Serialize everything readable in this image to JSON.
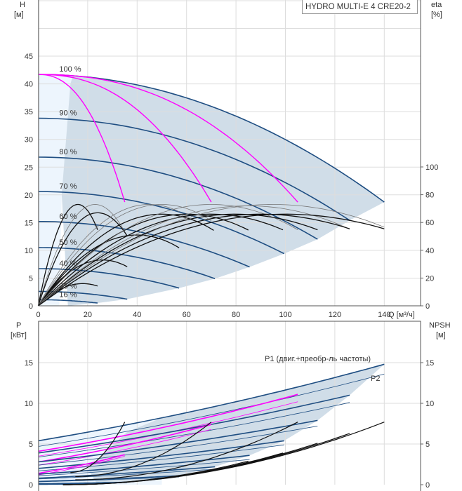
{
  "chart_data": [
    {
      "type": "line",
      "title": "HYDRO MULTI-E 4 CRE20-2",
      "xlabel": "Q [м³/ч]",
      "ylabel": [
        "H",
        "[м]"
      ],
      "y2label": [
        "eta",
        "[%]"
      ],
      "xlim": [
        0,
        140
      ],
      "ylim": [
        0,
        55
      ],
      "y2lim": [
        0,
        100
      ],
      "xticks": [
        "0",
        "20",
        "40",
        "60",
        "80",
        "100",
        "120",
        "140"
      ],
      "xticks_values": [
        0,
        20,
        40,
        60,
        80,
        100,
        120,
        140
      ],
      "yticks": [
        "0",
        "5",
        "10",
        "15",
        "20",
        "25",
        "30",
        "35",
        "40",
        "45"
      ],
      "yticks_values": [
        0,
        5,
        10,
        15,
        20,
        25,
        30,
        35,
        40,
        45
      ],
      "y2ticks": [
        "0",
        "20",
        "40",
        "60",
        "80",
        "100"
      ],
      "y2ticks_values": [
        0,
        20,
        40,
        60,
        80,
        100
      ],
      "grid": true,
      "colors": {
        "qh": "#1f4e82",
        "limit": "#ff00ff",
        "eta": "#000000",
        "band": "#d0dde8",
        "light": "#edf5fd"
      },
      "qh_curves": [
        {
          "label": "100 %",
          "h0": 41.7,
          "qend": 140,
          "hend": 18.7
        },
        {
          "label": "90 %",
          "h0": 33.8,
          "qend": 126,
          "hend": 15.4
        },
        {
          "label": "80 %",
          "h0": 26.8,
          "qend": 113,
          "hend": 12.0
        },
        {
          "label": "70 %",
          "h0": 20.6,
          "qend": 99.5,
          "hend": 9.4
        },
        {
          "label": "60 %",
          "h0": 15.2,
          "qend": 85.5,
          "hend": 7.0
        },
        {
          "label": "50 %",
          "h0": 10.5,
          "qend": 71.5,
          "hend": 4.9
        },
        {
          "label": "40 %",
          "h0": 6.7,
          "qend": 57,
          "hend": 3.2
        },
        {
          "label": "25 %",
          "h0": 2.6,
          "qend": 36,
          "hend": 1.2
        },
        {
          "label": "16 %",
          "h0": 1.1,
          "qend": 24,
          "hend": 0.5
        }
      ],
      "limit_curves": [
        {
          "h0": 41.7,
          "qend": 35,
          "hend": 18.7
        },
        {
          "h0": 41.7,
          "qend": 70,
          "hend": 18.7
        },
        {
          "h0": 41.7,
          "qend": 105,
          "hend": 18.7
        }
      ],
      "eta_curves": [
        {
          "qpeak": 16,
          "epeak": 73,
          "qend": 24,
          "thin": false
        },
        {
          "qpeak": 23,
          "epeak": 73,
          "qend": 36,
          "thin": true
        },
        {
          "qpeak": 24,
          "epeak": 67,
          "qend": 36,
          "thin": false
        },
        {
          "qpeak": 26,
          "epeak": 33,
          "qend": 36,
          "thin": false
        },
        {
          "qpeak": 18,
          "epeak": 16,
          "qend": 24,
          "thin": false
        },
        {
          "qpeak": 40,
          "epeak": 51,
          "qend": 57,
          "thin": false
        },
        {
          "qpeak": 45,
          "epeak": 73,
          "qend": 57,
          "thin": true
        },
        {
          "qpeak": 50,
          "epeak": 66,
          "qend": 71,
          "thin": false
        },
        {
          "qpeak": 50,
          "epeak": 73,
          "qend": 70,
          "thin": true
        },
        {
          "qpeak": 60,
          "epeak": 66,
          "qend": 85,
          "thin": false
        },
        {
          "qpeak": 70,
          "epeak": 66,
          "qend": 99,
          "thin": false
        },
        {
          "qpeak": 70,
          "epeak": 73,
          "qend": 105,
          "thin": true
        },
        {
          "qpeak": 80,
          "epeak": 66,
          "qend": 113,
          "thin": false
        },
        {
          "qpeak": 85,
          "epeak": 72,
          "qend": 126,
          "thin": true
        },
        {
          "qpeak": 90,
          "epeak": 66,
          "qend": 126,
          "thin": false
        },
        {
          "qpeak": 95,
          "epeak": 73,
          "qend": 140,
          "thin": true
        },
        {
          "qpeak": 100,
          "epeak": 66,
          "qend": 140,
          "thin": false
        }
      ]
    },
    {
      "type": "line",
      "ylabel": [
        "P",
        "[кВт]"
      ],
      "y2label": [
        "NPSH",
        "[м]"
      ],
      "xlim": [
        0,
        140
      ],
      "ylim": [
        0,
        20
      ],
      "y2lim": [
        0,
        20
      ],
      "yticks": [
        "0",
        "5",
        "10",
        "15"
      ],
      "yticks_values": [
        0,
        5,
        10,
        15
      ],
      "y2ticks": [
        "0",
        "5",
        "10",
        "15"
      ],
      "y2ticks_values": [
        0,
        5,
        10,
        15
      ],
      "annotations": {
        "p1": "P1 (двиг.+преобр-ль частоты)",
        "p2": "P2"
      },
      "power_curves": [
        {
          "speed": "100 %",
          "qend": 140,
          "p1": [
            5.4,
            14.8
          ],
          "p2": [
            4.7,
            13.6
          ],
          "limit": false
        },
        {
          "speed": "limit-3",
          "qend": 105,
          "p1": [
            4.1,
            11.1
          ],
          "p2": [
            3.5,
            10.2
          ],
          "limit": true
        },
        {
          "speed": "90 %",
          "qend": 126,
          "p1": [
            3.9,
            11.0
          ],
          "p2": [
            3.4,
            10.1
          ],
          "limit": false
        },
        {
          "speed": "limit-2",
          "qend": 70,
          "p1": [
            2.8,
            7.4
          ],
          "p2": [
            2.4,
            6.8
          ],
          "limit": true
        },
        {
          "speed": "80 %",
          "qend": 113,
          "p1": [
            2.8,
            7.9
          ],
          "p2": [
            2.4,
            7.2
          ],
          "limit": false
        },
        {
          "speed": "70 %",
          "qend": 99.5,
          "p1": [
            2.0,
            5.4
          ],
          "p2": [
            1.7,
            4.9
          ],
          "limit": false
        },
        {
          "speed": "limit-1",
          "qend": 35,
          "p1": [
            1.4,
            3.7
          ],
          "p2": [
            1.2,
            3.5
          ],
          "limit": true
        },
        {
          "speed": "60 %",
          "qend": 85.5,
          "p1": [
            1.3,
            3.6
          ],
          "p2": [
            1.1,
            3.1
          ],
          "limit": false
        },
        {
          "speed": "50 %",
          "qend": 71.5,
          "p1": [
            0.8,
            2.2
          ],
          "p2": [
            0.7,
            1.9
          ],
          "limit": false
        },
        {
          "speed": "40 %",
          "qend": 57,
          "p1": [
            0.4,
            1.1
          ],
          "p2": [
            0.35,
            0.95
          ],
          "limit": false
        },
        {
          "speed": "25 %",
          "qend": 36,
          "p1": [
            0.12,
            0.3
          ],
          "p2": [
            0.1,
            0.25
          ],
          "limit": false
        },
        {
          "speed": "16 %",
          "qend": 24,
          "p1": [
            0.05,
            0.1
          ],
          "p2": [
            0.04,
            0.08
          ],
          "limit": false
        }
      ],
      "npsh_curves": [
        {
          "q0": 13,
          "n0": 1.5,
          "qend": 35,
          "nend": 7.7
        },
        {
          "q0": 15,
          "n0": 1.0,
          "qend": 70,
          "nend": 7.7
        },
        {
          "q0": 15,
          "n0": 0.6,
          "qend": 105,
          "nend": 7.7
        },
        {
          "q0": 10,
          "n0": 0,
          "qend": 85,
          "nend": 2.9
        },
        {
          "q0": 10,
          "n0": 0,
          "qend": 99,
          "nend": 3.9
        },
        {
          "q0": 10,
          "n0": 0,
          "qend": 113,
          "nend": 5.1
        },
        {
          "q0": 10,
          "n0": 0,
          "qend": 126,
          "nend": 6.3
        },
        {
          "q0": 10,
          "n0": 0,
          "qend": 140,
          "nend": 7.7
        }
      ]
    }
  ]
}
